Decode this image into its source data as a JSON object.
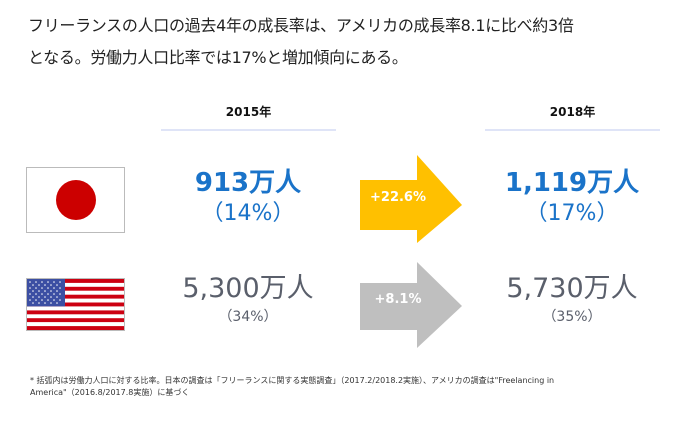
{
  "headline": {
    "line1": "フリーランスの人口の過去4年の成長率は、アメリカの成長率8.1に比べ約3倍",
    "line2": "となる。労働力人口比率では17%と増加傾向にある。"
  },
  "columns": {
    "year_2015": "2015年",
    "year_2018": "2018年"
  },
  "rows": [
    {
      "country": "japan",
      "flag_icon": "japan-flag-icon",
      "value_2015": "913万人",
      "ratio_2015": "（14%）",
      "growth": "+22.6%",
      "value_2018": "1,119万人",
      "ratio_2018": "（17%）",
      "accent_color": "#1a73c9",
      "arrow_color": "#ffc000"
    },
    {
      "country": "usa",
      "flag_icon": "usa-flag-icon",
      "value_2015": "5,300万人",
      "ratio_2015": "（34%）",
      "growth": "+8.1%",
      "value_2018": "5,730万人",
      "ratio_2018": "（35%）",
      "accent_color": "#5a5f6b",
      "arrow_color": "#bfbfbf"
    }
  ],
  "footnote": {
    "line1": "* 括弧内は労働力人口に対する比率。日本の調査は「フリーランスに関する実態調査」（2017.2/2018.2実施）、アメリカの調査は\"Freelancing in",
    "line2": "America\"（2016.8/2017.8実施）に基づく"
  }
}
